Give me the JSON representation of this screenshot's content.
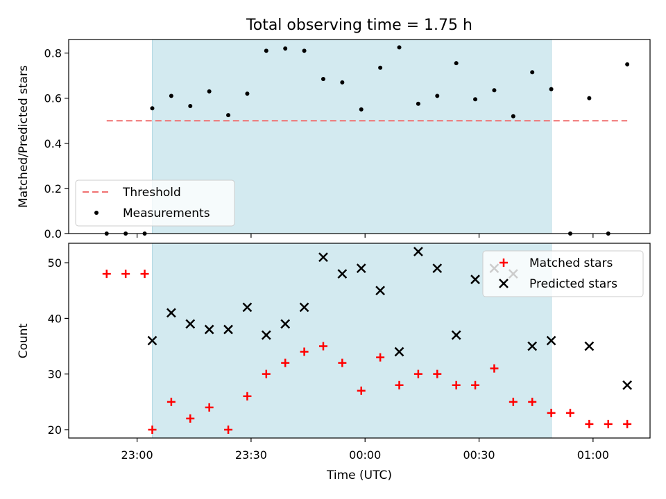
{
  "chart_data": [
    {
      "type": "scatter",
      "title": "Total observing time = 1.75 h",
      "ylabel": "Matched/Predicted stars",
      "xlabel": "",
      "xlim": [
        "22:42",
        "01:15"
      ],
      "ylim": [
        0,
        0.86
      ],
      "yticks": [
        0.0,
        0.2,
        0.4,
        0.6,
        0.8
      ],
      "ytick_labels": [
        "0.0",
        "0.2",
        "0.4",
        "0.6",
        "0.8"
      ],
      "shaded_interval": [
        "23:04",
        "00:49"
      ],
      "shade_color": "#d3eaf0",
      "legend": {
        "placement": "lower-left",
        "entries": [
          {
            "label": "Threshold",
            "style": "dashed-line",
            "color": "#f07070"
          },
          {
            "label": "Measurements",
            "style": "dot",
            "color": "#000000"
          }
        ]
      },
      "threshold": {
        "name": "Threshold",
        "value": 0.5,
        "x_range": [
          "22:52",
          "01:09"
        ],
        "color": "#f07070"
      },
      "series": [
        {
          "name": "Measurements",
          "color": "#000000",
          "x": [
            "22:52",
            "22:57",
            "23:02",
            "23:04",
            "23:09",
            "23:14",
            "23:19",
            "23:24",
            "23:29",
            "23:34",
            "23:39",
            "23:44",
            "23:49",
            "23:54",
            "23:59",
            "00:04",
            "00:09",
            "00:14",
            "00:19",
            "00:24",
            "00:29",
            "00:34",
            "00:39",
            "00:44",
            "00:49",
            "00:54",
            "00:59",
            "01:04",
            "01:09"
          ],
          "y": [
            0.0,
            0.0,
            0.0,
            0.555,
            0.61,
            0.565,
            0.63,
            0.525,
            0.62,
            0.81,
            0.82,
            0.81,
            0.685,
            0.67,
            0.55,
            0.735,
            0.825,
            0.575,
            0.61,
            0.755,
            0.595,
            0.635,
            0.52,
            0.715,
            0.64,
            0.0,
            0.6,
            0.0,
            0.75
          ]
        }
      ]
    },
    {
      "type": "scatter",
      "title": "",
      "ylabel": "Count",
      "xlabel": "Time (UTC)",
      "xlim": [
        "22:42",
        "01:15"
      ],
      "ylim": [
        18.5,
        53.5
      ],
      "yticks": [
        20,
        30,
        40,
        50
      ],
      "ytick_labels": [
        "20",
        "30",
        "40",
        "50"
      ],
      "xticks": [
        "23:00",
        "23:30",
        "00:00",
        "00:30",
        "01:00"
      ],
      "shaded_interval": [
        "23:04",
        "00:49"
      ],
      "shade_color": "#d3eaf0",
      "legend": {
        "placement": "upper-right",
        "entries": [
          {
            "label": "Matched stars",
            "style": "plus",
            "color": "#ff0000"
          },
          {
            "label": "Predicted stars",
            "style": "cross",
            "color": "#000000"
          }
        ]
      },
      "series": [
        {
          "name": "Matched stars",
          "marker": "plus",
          "color": "#ff0000",
          "x": [
            "22:52",
            "22:57",
            "23:02",
            "23:04",
            "23:09",
            "23:14",
            "23:19",
            "23:24",
            "23:29",
            "23:34",
            "23:39",
            "23:44",
            "23:49",
            "23:54",
            "23:59",
            "00:04",
            "00:09",
            "00:14",
            "00:19",
            "00:24",
            "00:29",
            "00:34",
            "00:39",
            "00:44",
            "00:49",
            "00:54",
            "00:59",
            "01:04",
            "01:09"
          ],
          "y": [
            48,
            48,
            48,
            20,
            25,
            22,
            24,
            20,
            26,
            30,
            32,
            34,
            35,
            32,
            27,
            33,
            28,
            30,
            30,
            28,
            28,
            31,
            25,
            25,
            23,
            23,
            21,
            21,
            21
          ]
        },
        {
          "name": "Predicted stars",
          "marker": "cross",
          "color": "#000000",
          "x": [
            "23:04",
            "23:09",
            "23:14",
            "23:19",
            "23:24",
            "23:29",
            "23:34",
            "23:39",
            "23:44",
            "23:49",
            "23:54",
            "23:59",
            "00:04",
            "00:09",
            "00:14",
            "00:19",
            "00:24",
            "00:29",
            "00:34",
            "00:39",
            "00:44",
            "00:49",
            "00:59",
            "01:09"
          ],
          "y": [
            36,
            41,
            39,
            38,
            38,
            42,
            37,
            39,
            42,
            51,
            48,
            49,
            45,
            34,
            52,
            49,
            37,
            47,
            49,
            48,
            35,
            36,
            35,
            28
          ]
        }
      ]
    }
  ]
}
